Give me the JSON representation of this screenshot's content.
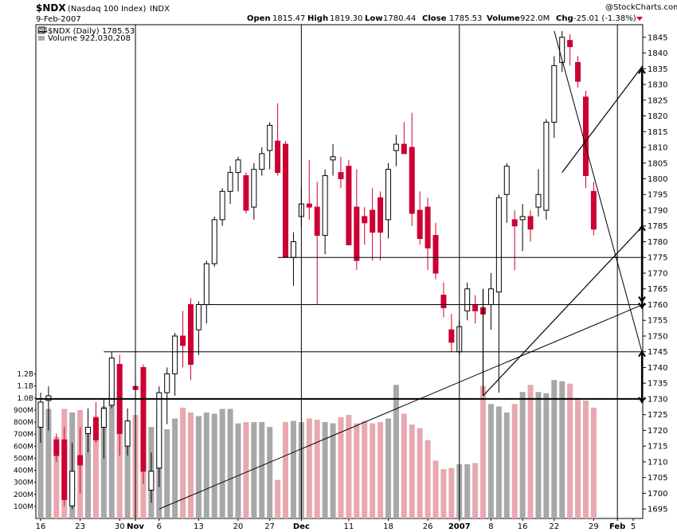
{
  "header": {
    "symbol": "$NDX",
    "name": "(Nasdaq 100 Index)",
    "exchange": "INDX",
    "date": "9-Feb-2007",
    "watermark": "@StockCharts.com",
    "open_label": "Open",
    "open_value": "1815.47",
    "high_label": "High",
    "high_value": "1819.30",
    "low_label": "Low",
    "low_value": "1780.44",
    "close_label": "Close",
    "close_value": "1785.53",
    "volume_label": "Volume",
    "volume_value": "922.0M",
    "chg_label": "Chg",
    "chg_value": "-25.01 (-1.38%)"
  },
  "legend": {
    "price": "$NDX (Daily) 1785.53",
    "volume": "Volume 922,030,208"
  },
  "colors": {
    "up": "#000000",
    "down": "#cc0033",
    "vol_up": "#a8a8a8",
    "vol_down": "#e8a8b0",
    "axis": "#000000"
  },
  "chart_data": {
    "type": "candlestick",
    "title": "$NDX (Nasdaq 100 Index) INDX",
    "y_axis": {
      "min": 1692,
      "max": 1849,
      "ticks": [
        1695,
        1700,
        1705,
        1710,
        1715,
        1720,
        1725,
        1730,
        1735,
        1740,
        1745,
        1750,
        1755,
        1760,
        1765,
        1770,
        1775,
        1780,
        1785,
        1790,
        1795,
        1800,
        1805,
        1810,
        1815,
        1820,
        1825,
        1830,
        1835,
        1840,
        1845
      ],
      "side": "right"
    },
    "x_ticks": [
      {
        "label": "16",
        "i": 0
      },
      {
        "label": "23",
        "i": 5
      },
      {
        "label": "30",
        "i": 10
      },
      {
        "label": "Nov",
        "i": 12,
        "bold": true
      },
      {
        "label": "6",
        "i": 15
      },
      {
        "label": "13",
        "i": 20
      },
      {
        "label": "20",
        "i": 25
      },
      {
        "label": "27",
        "i": 29
      },
      {
        "label": "Dec",
        "i": 33,
        "bold": true
      },
      {
        "label": "11",
        "i": 39
      },
      {
        "label": "18",
        "i": 44
      },
      {
        "label": "26",
        "i": 49
      },
      {
        "label": "2007",
        "i": 53,
        "bold": true
      },
      {
        "label": "8",
        "i": 57
      },
      {
        "label": "16",
        "i": 61
      },
      {
        "label": "22",
        "i": 65
      },
      {
        "label": "29",
        "i": 70
      },
      {
        "label": "Feb",
        "i": 73,
        "bold": true
      },
      {
        "label": "5",
        "i": 75
      }
    ],
    "volume_axis": {
      "max": 1.25,
      "unit": "B",
      "ticks": [
        {
          "label": "100M",
          "v": 0.1
        },
        {
          "label": "200M",
          "v": 0.2
        },
        {
          "label": "300M",
          "v": 0.3
        },
        {
          "label": "400M",
          "v": 0.4
        },
        {
          "label": "500M",
          "v": 0.5
        },
        {
          "label": "600M",
          "v": 0.6
        },
        {
          "label": "700M",
          "v": 0.7
        },
        {
          "label": "800M",
          "v": 0.8
        },
        {
          "label": "900M",
          "v": 0.9
        },
        {
          "label": "1.0B",
          "v": 1.0
        },
        {
          "label": "1.1B",
          "v": 1.1
        },
        {
          "label": "1.2B",
          "v": 1.2
        }
      ]
    },
    "ohlc": [
      [
        1721.0,
        1732.0,
        1716.0,
        1729.0
      ],
      [
        1729.5,
        1734.0,
        1720.0,
        1731.0
      ],
      [
        1717.0,
        1719.0,
        1710.0,
        1712.0
      ],
      [
        1717.0,
        1721.0,
        1696.0,
        1698.0
      ],
      [
        1696.0,
        1716.0,
        1695.0,
        1707.0
      ],
      [
        1712.0,
        1721.0,
        1700.0,
        1709.0
      ],
      [
        1719.0,
        1727.0,
        1713.0,
        1721.0
      ],
      [
        1724.0,
        1729.0,
        1716.0,
        1717.0
      ],
      [
        1721.0,
        1730.0,
        1711.0,
        1727.0
      ],
      [
        1728.0,
        1745.0,
        1727.0,
        1743.0
      ],
      [
        1741.0,
        1744.0,
        1712.0,
        1719.0
      ],
      [
        1715.0,
        1727.0,
        1712.0,
        1723.0
      ],
      [
        1734.0,
        1736.0,
        1731.0,
        1733.0
      ],
      [
        1740.0,
        1741.0,
        1703.0,
        1707.0
      ],
      [
        1701.0,
        1713.0,
        1697.0,
        1707.0
      ],
      [
        1708.0,
        1734.0,
        1702.0,
        1732.0
      ],
      [
        1732.0,
        1740.0,
        1722.0,
        1738.0
      ],
      [
        1738.0,
        1751.0,
        1731.0,
        1750.0
      ],
      [
        1750.0,
        1758.0,
        1740.0,
        1747.0
      ],
      [
        1760.0,
        1762.0,
        1736.0,
        1741.0
      ],
      [
        1752.0,
        1761.0,
        1744.0,
        1760.0
      ],
      [
        1760.0,
        1774.0,
        1754.0,
        1773.0
      ],
      [
        1773.0,
        1788.0,
        1772.0,
        1787.0
      ],
      [
        1787.0,
        1797.0,
        1785.0,
        1796.0
      ],
      [
        1796.0,
        1804.0,
        1792.0,
        1802.0
      ],
      [
        1802.0,
        1807.0,
        1796.0,
        1806.0
      ],
      [
        1801.0,
        1802.0,
        1789.0,
        1790.0
      ],
      [
        1791.0,
        1805.0,
        1787.0,
        1803.0
      ],
      [
        1803.0,
        1810.0,
        1801.0,
        1808.0
      ],
      [
        1809.0,
        1818.0,
        1803.0,
        1817.0
      ],
      [
        1812.0,
        1824.0,
        1801.0,
        1802.0
      ],
      [
        1811.0,
        1812.0,
        1775.0,
        1775.0
      ],
      [
        1775.0,
        1783.0,
        1766.0,
        1780.0
      ],
      [
        1788.0,
        1797.0,
        1785.0,
        1792.0
      ],
      [
        1792.0,
        1806.0,
        1787.0,
        1791.0
      ],
      [
        1791.0,
        1799.0,
        1760.0,
        1782.0
      ],
      [
        1782.0,
        1803.0,
        1776.0,
        1801.0
      ],
      [
        1806.0,
        1811.0,
        1801.0,
        1807.0
      ],
      [
        1802.0,
        1807.0,
        1797.0,
        1800.0
      ],
      [
        1804.0,
        1806.0,
        1779.0,
        1779.0
      ],
      [
        1791.0,
        1803.0,
        1771.0,
        1774.0
      ],
      [
        1788.0,
        1791.0,
        1779.0,
        1786.0
      ],
      [
        1790.0,
        1797.0,
        1774.0,
        1783.0
      ],
      [
        1794.0,
        1796.0,
        1774.0,
        1783.0
      ],
      [
        1787.0,
        1805.0,
        1781.0,
        1803.0
      ],
      [
        1809.0,
        1814.0,
        1804.0,
        1811.0
      ],
      [
        1811.0,
        1818.0,
        1808.0,
        1808.0
      ],
      [
        1810.0,
        1821.0,
        1785.0,
        1789.0
      ],
      [
        1790.0,
        1796.0,
        1779.0,
        1781.0
      ],
      [
        1791.0,
        1794.0,
        1771.0,
        1778.0
      ],
      [
        1782.0,
        1786.0,
        1768.0,
        1770.0
      ],
      [
        1763.0,
        1767.0,
        1756.0,
        1759.0
      ],
      [
        1752.0,
        1757.0,
        1745.0,
        1748.0
      ],
      [
        1745.0,
        1755.0,
        1744.0,
        1753.0
      ],
      [
        1758.0,
        1767.0,
        1755.0,
        1765.0
      ],
      [
        1760.0,
        1763.0,
        1754.0,
        1758.0
      ],
      [
        1759.0,
        1764.0,
        1753.0,
        1757.0
      ],
      [
        1760.0,
        1770.0,
        1752.0,
        1765.0
      ],
      [
        1764.0,
        1795.0,
        1732.0,
        1794.0
      ],
      [
        1795.0,
        1805.0,
        1786.0,
        1804.0
      ],
      [
        1787.0,
        1790.0,
        1771.0,
        1785.0
      ],
      [
        1787.0,
        1792.0,
        1777.0,
        1788.0
      ],
      [
        1788.0,
        1790.0,
        1780.0,
        1784.0
      ],
      [
        1791.0,
        1803.0,
        1788.0,
        1795.0
      ],
      [
        1790.0,
        1819.0,
        1787.0,
        1818.0
      ],
      [
        1818.0,
        1839.0,
        1813.0,
        1836.0
      ],
      [
        1837.0,
        1847.0,
        1834.0,
        1845.0
      ],
      [
        1844.0,
        1846.0,
        1836.0,
        1842.0
      ],
      [
        1837.0,
        1839.0,
        1829.0,
        1831.0
      ],
      [
        1826.0,
        1828.0,
        1797.0,
        1801.0
      ],
      [
        1796.0,
        1799.0,
        1782.0,
        1784.0
      ]
    ]
  }
}
